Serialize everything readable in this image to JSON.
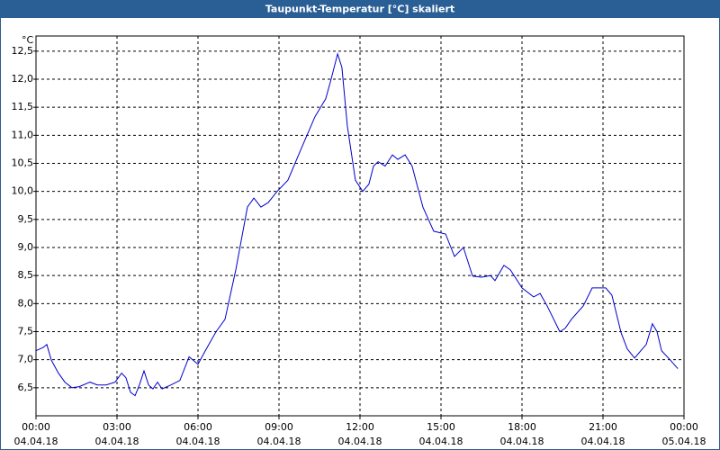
{
  "chart_data": {
    "type": "line",
    "title": "Taupunkt-Temperatur [°C] skaliert",
    "y_unit": "°C",
    "color": "#0000cc",
    "grid": true,
    "x": [
      0,
      0.27,
      0.4,
      0.57,
      0.83,
      1.07,
      1.33,
      1.6,
      2.0,
      2.27,
      2.6,
      2.93,
      3.17,
      3.33,
      3.5,
      3.67,
      3.83,
      4.0,
      4.17,
      4.33,
      4.5,
      4.67,
      5.0,
      5.33,
      5.67,
      6.0,
      6.27,
      6.67,
      7.0,
      7.4,
      7.83,
      8.07,
      8.33,
      8.6,
      8.93,
      9.33,
      9.83,
      10.33,
      10.73,
      10.93,
      11.17,
      11.33,
      11.53,
      11.83,
      12.1,
      12.33,
      12.5,
      12.67,
      12.93,
      13.2,
      13.4,
      13.67,
      13.93,
      14.33,
      14.73,
      15.17,
      15.5,
      15.83,
      16.17,
      16.5,
      16.83,
      17.0,
      17.33,
      17.57,
      18.0,
      18.43,
      18.67,
      18.93,
      19.4,
      19.6,
      19.83,
      20.27,
      20.6,
      21.1,
      21.33,
      21.67,
      21.9,
      22.17,
      22.4,
      22.6,
      22.83,
      23.0,
      23.17,
      23.5,
      23.77
    ],
    "values": [
      7.16,
      7.22,
      7.27,
      6.99,
      6.76,
      6.6,
      6.5,
      6.52,
      6.6,
      6.55,
      6.55,
      6.6,
      6.76,
      6.68,
      6.42,
      6.36,
      6.55,
      6.8,
      6.55,
      6.48,
      6.6,
      6.48,
      6.55,
      6.63,
      7.05,
      6.92,
      7.16,
      7.5,
      7.72,
      8.6,
      9.72,
      9.88,
      9.72,
      9.8,
      10.0,
      10.2,
      10.77,
      11.33,
      11.65,
      12.0,
      12.45,
      12.21,
      11.17,
      10.2,
      10.0,
      10.13,
      10.45,
      10.53,
      10.45,
      10.65,
      10.57,
      10.65,
      10.45,
      9.72,
      9.29,
      9.24,
      8.84,
      9.0,
      8.49,
      8.47,
      8.5,
      8.41,
      8.68,
      8.6,
      8.28,
      8.12,
      8.18,
      7.96,
      7.5,
      7.56,
      7.72,
      7.96,
      8.28,
      8.28,
      8.15,
      7.48,
      7.19,
      7.03,
      7.16,
      7.27,
      7.64,
      7.5,
      7.16,
      6.99,
      6.84
    ],
    "xlim": [
      0,
      24
    ],
    "xticks": [
      {
        "value": 0,
        "label": "00:00"
      },
      {
        "value": 3,
        "label": "03:00"
      },
      {
        "value": 6,
        "label": "06:00"
      },
      {
        "value": 9,
        "label": "09:00"
      },
      {
        "value": 12,
        "label": "12:00"
      },
      {
        "value": 15,
        "label": "15:00"
      },
      {
        "value": 18,
        "label": "18:00"
      },
      {
        "value": 21,
        "label": "21:00"
      },
      {
        "value": 24,
        "label": "00:00"
      }
    ],
    "xtick_dates": [
      "04.04.18",
      "04.04.18",
      "04.04.18",
      "04.04.18",
      "04.04.18",
      "04.04.18",
      "04.04.18",
      "04.04.18",
      "05.04.18"
    ],
    "ylim": [
      6.0,
      12.77
    ],
    "yticks": [
      {
        "value": 6.5,
        "label": "6,5"
      },
      {
        "value": 7,
        "label": "7,0"
      },
      {
        "value": 7.5,
        "label": "7,5"
      },
      {
        "value": 8,
        "label": "8,0"
      },
      {
        "value": 8.5,
        "label": "8,5"
      },
      {
        "value": 9,
        "label": "9,0"
      },
      {
        "value": 9.5,
        "label": "9,5"
      },
      {
        "value": 10,
        "label": "10,0"
      },
      {
        "value": 10.5,
        "label": "10,5"
      },
      {
        "value": 11,
        "label": "11,0"
      },
      {
        "value": 11.5,
        "label": "11,5"
      },
      {
        "value": 12,
        "label": "12,0"
      },
      {
        "value": 12.5,
        "label": "12,5"
      }
    ]
  }
}
